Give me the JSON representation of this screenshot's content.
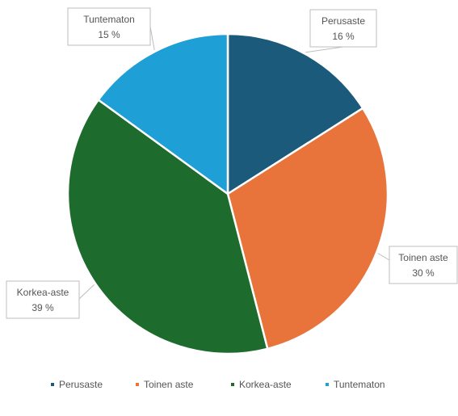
{
  "chart_data": {
    "type": "pie",
    "title": "",
    "categories": [
      "Perusaste",
      "Toinen aste",
      "Korkea-aste",
      "Tuntematon"
    ],
    "values": [
      16,
      30,
      39,
      15
    ],
    "value_labels": [
      "16 %",
      "30 %",
      "39 %",
      "15 %"
    ],
    "colors": [
      "#1b5a7a",
      "#e8743b",
      "#1e6b2e",
      "#1e9fd6"
    ],
    "start_angle_deg": 0,
    "direction": "clockwise",
    "legend": {
      "placement": "bottom",
      "entries": [
        "Perusaste",
        "Toinen aste",
        "Korkea-aste",
        "Tuntematon"
      ]
    }
  }
}
